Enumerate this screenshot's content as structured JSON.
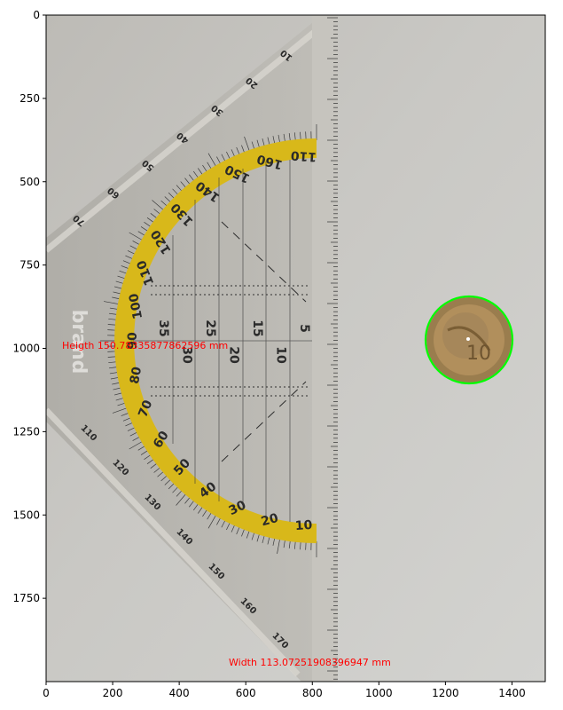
{
  "plot": {
    "x_axis": {
      "ticks": [
        0,
        200,
        400,
        600,
        800,
        1000,
        1200,
        1400
      ],
      "range": [
        0,
        1500
      ]
    },
    "y_axis": {
      "ticks": [
        0,
        250,
        500,
        750,
        1000,
        1250,
        1500,
        1750
      ],
      "range": [
        2000,
        0
      ]
    }
  },
  "image": {
    "height_annotation": "Heigth 150.78335877862596 mm",
    "width_annotation": "Width 113.07251908396947 mm",
    "annotation_color": "#ff0000",
    "detection_circle_color": "#00ff00",
    "brand_text": "brand",
    "protractor_numbers": [
      "110",
      "160",
      "150",
      "140",
      "130",
      "120",
      "110",
      "100",
      "90",
      "80",
      "70",
      "60",
      "50",
      "40",
      "30",
      "20",
      "10"
    ],
    "inner_numbers": [
      "35",
      "30",
      "25",
      "20",
      "15",
      "10",
      "5"
    ],
    "outer_numbers": [
      "10",
      "20",
      "30",
      "40",
      "50",
      "60",
      "70",
      "110",
      "120",
      "130",
      "140",
      "150",
      "160",
      "170"
    ]
  }
}
